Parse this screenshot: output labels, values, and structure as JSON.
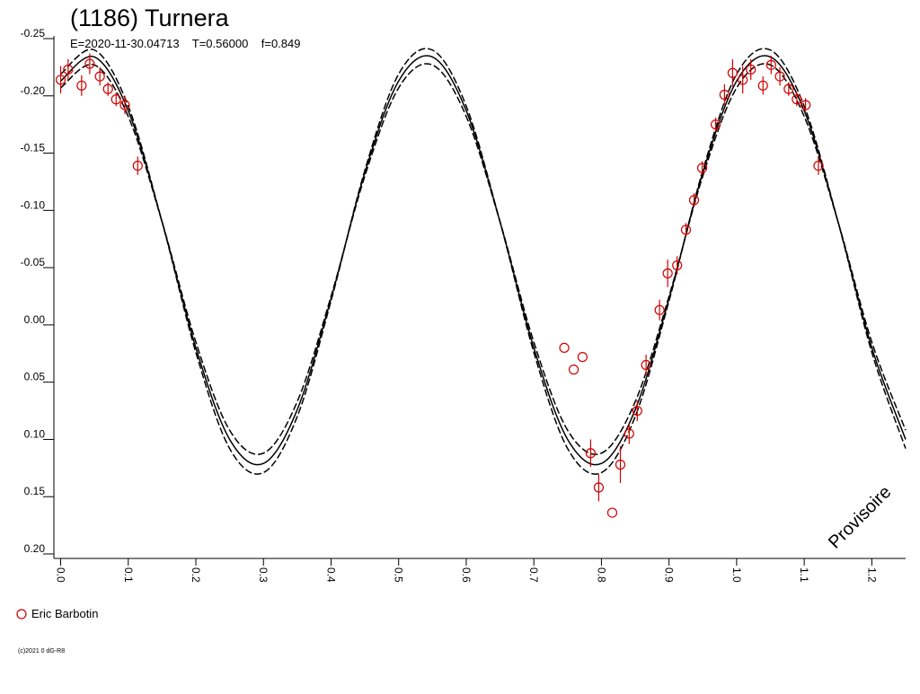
{
  "chart_data": {
    "type": "scatter",
    "title": "(1186) Turnera",
    "subtitle": "E=2020-11-30.04713    T=0.56000    f=0.849",
    "watermark": "Provisoire",
    "footnote": "(c)2021 0 dG-R8",
    "xlim": [
      -0.01,
      1.25
    ],
    "ylim": [
      -0.25,
      0.2
    ],
    "y_inverted": true,
    "grid": false,
    "xticks": [
      {
        "value": 0,
        "label": "0.0"
      },
      0.1,
      0.2,
      0.3,
      0.4,
      0.5,
      0.6,
      0.7,
      0.8,
      0.9,
      {
        "value": 1,
        "label": "1.0"
      },
      1.1,
      1.2
    ],
    "yticks": [
      -0.25,
      {
        "value": -0.2,
        "label": "-0.20"
      },
      -0.15,
      {
        "value": -0.1,
        "label": "-0.10"
      },
      -0.05,
      {
        "value": 0,
        "label": "0.00"
      },
      0.05,
      {
        "value": 0.1,
        "label": "0.10"
      },
      0.15,
      {
        "value": 0.2,
        "label": "0.20"
      }
    ],
    "x": [
      0,
      0.05,
      0.1,
      0.15,
      0.2,
      0.25,
      0.3,
      0.35,
      0.4,
      0.45,
      0.5,
      0.55,
      0.6,
      0.65,
      0.7,
      0.75,
      0.8,
      0.85,
      0.9,
      0.95,
      1,
      1.05,
      1.1,
      1.15,
      1.2,
      1.25
    ],
    "series": [
      {
        "type": "line",
        "color": "#000000",
        "dashed": true,
        "values": [
          -0.219,
          -0.24,
          -0.191,
          -0.09,
          0.024,
          0.108,
          0.129,
          0.08,
          -0.021,
          -0.135,
          -0.219,
          -0.24,
          -0.191,
          -0.09,
          0.024,
          0.108,
          0.129,
          0.08,
          -0.021,
          -0.135,
          -0.219,
          -0.24,
          -0.191,
          -0.09,
          0.024,
          0.108
        ]
      },
      {
        "type": "line",
        "color": "#000000",
        "dashed": false,
        "values": [
          -0.213,
          -0.234,
          -0.187,
          -0.09,
          0.02,
          0.1,
          0.121,
          0.074,
          -0.023,
          -0.133,
          -0.213,
          -0.234,
          -0.187,
          -0.09,
          0.02,
          0.1,
          0.121,
          0.074,
          -0.023,
          -0.133,
          -0.213,
          -0.234,
          -0.187,
          -0.09,
          0.02,
          0.1
        ]
      },
      {
        "type": "line",
        "color": "#000000",
        "dashed": true,
        "values": [
          -0.207,
          -0.227,
          -0.182,
          -0.09,
          0.015,
          0.092,
          0.112,
          0.067,
          -0.025,
          -0.13,
          -0.207,
          -0.227,
          -0.182,
          -0.09,
          0.015,
          0.092,
          0.112,
          0.067,
          -0.025,
          -0.13,
          -0.207,
          -0.227,
          -0.182,
          -0.09,
          0.015,
          0.092
        ]
      },
      {
        "type": "scatter",
        "name": "Eric Barbotin",
        "color": "#d00000",
        "x": [
          0.0,
          0.011,
          0.031,
          0.043,
          0.058,
          0.07,
          0.082,
          0.095,
          0.114,
          0.745,
          0.759,
          0.772,
          0.784,
          0.796,
          0.816,
          0.828,
          0.841,
          0.853,
          0.866,
          0.886,
          0.898,
          0.912,
          0.925,
          0.937,
          0.949,
          0.969,
          0.982,
          0.994,
          1.009,
          1.021,
          1.039,
          1.051,
          1.064,
          1.077,
          1.089,
          1.102,
          1.121
        ],
        "values": [
          -0.214,
          -0.223,
          -0.209,
          -0.228,
          -0.217,
          -0.206,
          -0.197,
          -0.192,
          -0.139,
          0.02,
          0.039,
          0.028,
          0.112,
          0.142,
          0.164,
          0.122,
          0.095,
          0.075,
          0.035,
          -0.013,
          -0.045,
          -0.052,
          -0.083,
          -0.109,
          -0.137,
          -0.175,
          -0.201,
          -0.22,
          -0.214,
          -0.223,
          -0.209,
          -0.227,
          -0.217,
          -0.206,
          -0.197,
          -0.192,
          -0.139
        ],
        "errors": [
          0.012,
          0.009,
          0.009,
          0.009,
          0.008,
          0.006,
          0.006,
          0.008,
          0.008,
          0,
          0,
          0,
          0.012,
          0.012,
          0,
          0.016,
          0.009,
          0.009,
          0.009,
          0.009,
          0.012,
          0.008,
          0.006,
          0.006,
          0.006,
          0.006,
          0.009,
          0.012,
          0.012,
          0.009,
          0.008,
          0.008,
          0.008,
          0.006,
          0.006,
          0.006,
          0.008
        ]
      }
    ]
  }
}
